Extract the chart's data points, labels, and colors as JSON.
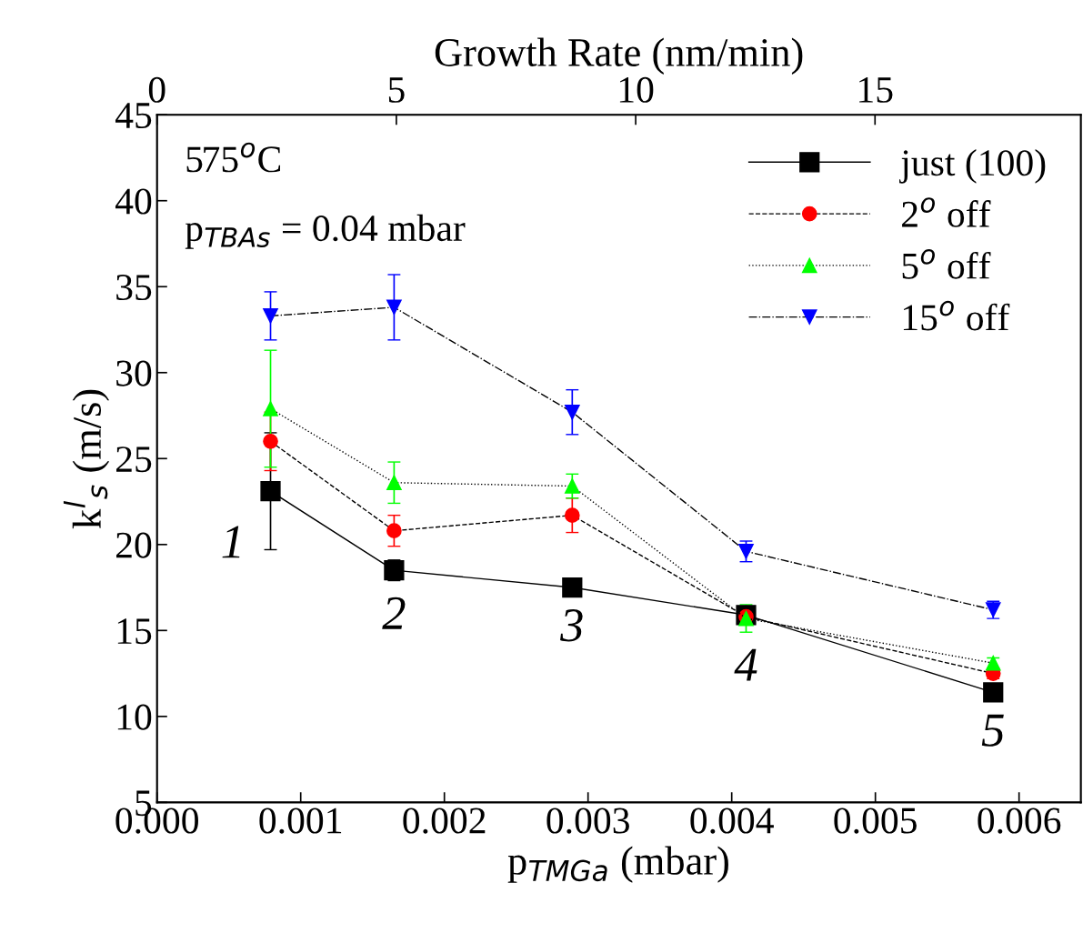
{
  "chart_data": {
    "type": "line",
    "xlabel": "p$_{TMGa}$ (mbar)",
    "ylabel": "k$^{l}$$_{s}$ (m/s)",
    "x2label": "Growth Rate (nm/min)",
    "xlim": [
      0,
      0.00643
    ],
    "xticks": [
      {
        "value": 0,
        "label": "0.000"
      },
      0.001,
      0.002,
      0.003,
      0.004,
      0.005,
      0.006
    ],
    "x2lim": [
      0,
      19.3
    ],
    "x2ticks": [
      0,
      5,
      10,
      15
    ],
    "ylim": [
      5,
      45
    ],
    "yticks": [
      5,
      10,
      15,
      20,
      25,
      30,
      35,
      40,
      45
    ],
    "x": [
      0.00079,
      0.00165,
      0.00289,
      0.0041,
      0.00582
    ],
    "legend": "top right",
    "grid": false,
    "series": [
      {
        "name": "just (100)",
        "color": "#000000",
        "marker": "square",
        "line_style": "solid",
        "values": [
          23.1,
          18.5,
          17.5,
          15.9,
          11.4
        ],
        "errors": [
          3.4,
          0.6,
          0.3,
          null,
          0.3
        ]
      },
      {
        "name": "2$^{o}$ off",
        "color": "#ff0000",
        "marker": "circle",
        "line_style": "dashed",
        "values": [
          26.0,
          20.8,
          21.7,
          15.8,
          12.5
        ],
        "errors": [
          1.7,
          0.9,
          1.0,
          null,
          0.3
        ]
      },
      {
        "name": "5$^{o}$ off",
        "color": "#00ff00",
        "marker": "triangle",
        "line_style": "dotted",
        "values": [
          27.9,
          23.6,
          23.4,
          15.7,
          13.1
        ],
        "errors": [
          3.4,
          1.2,
          0.7,
          0.8,
          0.3
        ]
      },
      {
        "name": "15$^{o}$ off",
        "color": "#0000ff",
        "marker": "triangle_down",
        "line_style": "dashdot",
        "values": [
          33.3,
          33.8,
          27.7,
          19.6,
          16.2
        ],
        "errors": [
          1.4,
          1.9,
          1.3,
          0.6,
          0.5
        ]
      }
    ],
    "annotations": [
      "575$^{o}$C",
      "p$_{TBAs}$ = 0.04 mbar",
      "1",
      "2",
      "3",
      "4",
      "5"
    ]
  }
}
